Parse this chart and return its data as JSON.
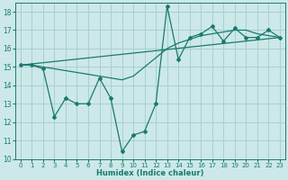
{
  "xlabel": "Humidex (Indice chaleur)",
  "ylabel": "",
  "xlim": [
    -0.5,
    23.5
  ],
  "ylim": [
    10,
    18.5
  ],
  "yticks": [
    10,
    11,
    12,
    13,
    14,
    15,
    16,
    17,
    18
  ],
  "xticks": [
    0,
    1,
    2,
    3,
    4,
    5,
    6,
    7,
    8,
    9,
    10,
    11,
    12,
    13,
    14,
    15,
    16,
    17,
    18,
    19,
    20,
    21,
    22,
    23
  ],
  "background_color": "#cce8e8",
  "grid_color": "#aacfcf",
  "line_color": "#1a7a6e",
  "series": [
    {
      "x": [
        0,
        1,
        2,
        3,
        4,
        5,
        6,
        7,
        8,
        9,
        10,
        11,
        12,
        13,
        14,
        15,
        16,
        17,
        18,
        19,
        20,
        21,
        22,
        23
      ],
      "y": [
        15.1,
        15.1,
        14.9,
        12.3,
        13.3,
        13.0,
        13.0,
        14.4,
        13.3,
        10.4,
        11.3,
        11.5,
        13.0,
        18.3,
        15.4,
        16.6,
        16.8,
        17.2,
        16.4,
        17.1,
        16.6,
        16.6,
        17.0,
        16.6
      ]
    },
    {
      "x": [
        0,
        1,
        2,
        3,
        4,
        5,
        6,
        7,
        8,
        9,
        10,
        11,
        12,
        13,
        14,
        15,
        16,
        17,
        18,
        19,
        20,
        21,
        22,
        23
      ],
      "y": [
        15.1,
        15.1,
        15.0,
        14.9,
        14.8,
        14.7,
        14.6,
        14.5,
        14.4,
        14.3,
        14.5,
        15.0,
        15.5,
        16.0,
        16.3,
        16.5,
        16.7,
        16.8,
        16.9,
        17.0,
        17.0,
        16.8,
        16.7,
        16.6
      ]
    },
    {
      "x": [
        0,
        23
      ],
      "y": [
        15.1,
        16.6
      ]
    }
  ]
}
